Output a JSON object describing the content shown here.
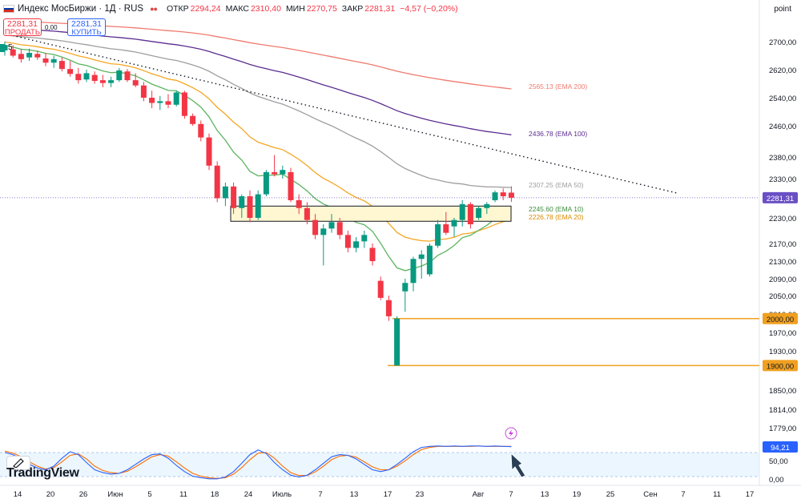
{
  "header": {
    "title": "Индекс МосБиржи · 1Д · RUS",
    "open_label": "ОТКР",
    "open": "2294,24",
    "high_label": "МАКС",
    "high": "2310,40",
    "low_label": "МИН",
    "low": "2270,75",
    "close_label": "ЗАКР",
    "close": "2281,31",
    "change": "−4,57 (−0,20%)"
  },
  "trade": {
    "sell_price": "2281,31",
    "sell_label": "ПРОДАТЬ",
    "spread": "0,00",
    "buy_price": "2281,31",
    "buy_label": "КУПИТЬ"
  },
  "interval_chip": "5",
  "axis_mode": "point",
  "watermark": "TradingView",
  "colors": {
    "up": "#089981",
    "down": "#f23645",
    "ema10": "#5bb45f",
    "ema20": "#f5a623",
    "ema50": "#9e9e9e",
    "ema100": "#5b2d90",
    "ema200": "#ef7a6e",
    "level": "#f0a020",
    "zone_fill": "#fff7d1",
    "price_label": "#6a4fc4",
    "stoch_k": "#2962ff",
    "stoch_d": "#ff6d00"
  },
  "chart_data": {
    "type": "candlestick",
    "y_ticks": [
      "2700,00",
      "2620,00",
      "2540,00",
      "2460,00",
      "2380,00",
      "2330,00",
      "2230,00",
      "2170,00",
      "2130,00",
      "2090,00",
      "2050,00",
      "2010,00",
      "1970,00",
      "1930,00",
      "1850,00",
      "1814,00",
      "1779,00"
    ],
    "y_tick_values": [
      2700,
      2620,
      2540,
      2460,
      2380,
      2330,
      2230,
      2170,
      2130,
      2090,
      2050,
      2010,
      1970,
      1930,
      1850,
      1814,
      1779
    ],
    "x_ticks": [
      "14",
      "20",
      "26",
      "Июн",
      "5",
      "11",
      "18",
      "24",
      "Июль",
      "7",
      "13",
      "17",
      "23",
      "Авг",
      "7",
      "13",
      "19",
      "25",
      "Сен",
      "7",
      "11",
      "17"
    ],
    "candles": [
      {
        "o": 2675,
        "h": 2700,
        "l": 2660,
        "c": 2690
      },
      {
        "o": 2678,
        "h": 2690,
        "l": 2655,
        "c": 2660
      },
      {
        "o": 2665,
        "h": 2680,
        "l": 2640,
        "c": 2650
      },
      {
        "o": 2655,
        "h": 2680,
        "l": 2645,
        "c": 2668
      },
      {
        "o": 2665,
        "h": 2675,
        "l": 2648,
        "c": 2655
      },
      {
        "o": 2652,
        "h": 2668,
        "l": 2630,
        "c": 2640
      },
      {
        "o": 2640,
        "h": 2660,
        "l": 2625,
        "c": 2650
      },
      {
        "o": 2645,
        "h": 2655,
        "l": 2615,
        "c": 2622
      },
      {
        "o": 2622,
        "h": 2645,
        "l": 2600,
        "c": 2608
      },
      {
        "o": 2608,
        "h": 2625,
        "l": 2580,
        "c": 2590
      },
      {
        "o": 2592,
        "h": 2620,
        "l": 2585,
        "c": 2610
      },
      {
        "o": 2605,
        "h": 2615,
        "l": 2580,
        "c": 2588
      },
      {
        "o": 2590,
        "h": 2605,
        "l": 2570,
        "c": 2582
      },
      {
        "o": 2582,
        "h": 2600,
        "l": 2570,
        "c": 2590
      },
      {
        "o": 2590,
        "h": 2625,
        "l": 2585,
        "c": 2618
      },
      {
        "o": 2615,
        "h": 2622,
        "l": 2585,
        "c": 2590
      },
      {
        "o": 2590,
        "h": 2610,
        "l": 2570,
        "c": 2575
      },
      {
        "o": 2575,
        "h": 2585,
        "l": 2530,
        "c": 2540
      },
      {
        "o": 2540,
        "h": 2560,
        "l": 2510,
        "c": 2525
      },
      {
        "o": 2525,
        "h": 2545,
        "l": 2505,
        "c": 2530
      },
      {
        "o": 2530,
        "h": 2550,
        "l": 2510,
        "c": 2520
      },
      {
        "o": 2520,
        "h": 2560,
        "l": 2515,
        "c": 2555
      },
      {
        "o": 2555,
        "h": 2560,
        "l": 2480,
        "c": 2488
      },
      {
        "o": 2488,
        "h": 2495,
        "l": 2460,
        "c": 2465
      },
      {
        "o": 2465,
        "h": 2475,
        "l": 2420,
        "c": 2430
      },
      {
        "o": 2430,
        "h": 2440,
        "l": 2350,
        "c": 2360
      },
      {
        "o": 2360,
        "h": 2370,
        "l": 2270,
        "c": 2280
      },
      {
        "o": 2280,
        "h": 2320,
        "l": 2260,
        "c": 2310
      },
      {
        "o": 2310,
        "h": 2320,
        "l": 2240,
        "c": 2255
      },
      {
        "o": 2255,
        "h": 2290,
        "l": 2230,
        "c": 2285
      },
      {
        "o": 2285,
        "h": 2300,
        "l": 2220,
        "c": 2230
      },
      {
        "o": 2230,
        "h": 2300,
        "l": 2225,
        "c": 2290
      },
      {
        "o": 2290,
        "h": 2350,
        "l": 2285,
        "c": 2345
      },
      {
        "o": 2345,
        "h": 2385,
        "l": 2335,
        "c": 2340
      },
      {
        "o": 2340,
        "h": 2360,
        "l": 2330,
        "c": 2350
      },
      {
        "o": 2345,
        "h": 2355,
        "l": 2270,
        "c": 2275
      },
      {
        "o": 2275,
        "h": 2290,
        "l": 2240,
        "c": 2255
      },
      {
        "o": 2255,
        "h": 2270,
        "l": 2215,
        "c": 2225
      },
      {
        "o": 2225,
        "h": 2240,
        "l": 2180,
        "c": 2190
      },
      {
        "o": 2190,
        "h": 2215,
        "l": 2120,
        "c": 2205
      },
      {
        "o": 2205,
        "h": 2240,
        "l": 2195,
        "c": 2220
      },
      {
        "o": 2220,
        "h": 2230,
        "l": 2180,
        "c": 2190
      },
      {
        "o": 2190,
        "h": 2200,
        "l": 2150,
        "c": 2160
      },
      {
        "o": 2160,
        "h": 2185,
        "l": 2150,
        "c": 2175
      },
      {
        "o": 2175,
        "h": 2200,
        "l": 2160,
        "c": 2190
      },
      {
        "o": 2160,
        "h": 2170,
        "l": 2120,
        "c": 2130
      },
      {
        "o": 2085,
        "h": 2095,
        "l": 2040,
        "c": 2045
      },
      {
        "o": 2040,
        "h": 2050,
        "l": 1995,
        "c": 2005
      },
      {
        "o": 1900,
        "h": 2005,
        "l": 1900,
        "c": 2000
      },
      {
        "o": 2060,
        "h": 2090,
        "l": 2015,
        "c": 2080
      },
      {
        "o": 2080,
        "h": 2140,
        "l": 2060,
        "c": 2135
      },
      {
        "o": 2135,
        "h": 2155,
        "l": 2090,
        "c": 2145
      },
      {
        "o": 2100,
        "h": 2170,
        "l": 2095,
        "c": 2165
      },
      {
        "o": 2165,
        "h": 2225,
        "l": 2160,
        "c": 2215
      },
      {
        "o": 2215,
        "h": 2245,
        "l": 2190,
        "c": 2195
      },
      {
        "o": 2210,
        "h": 2230,
        "l": 2185,
        "c": 2225
      },
      {
        "o": 2225,
        "h": 2275,
        "l": 2210,
        "c": 2265
      },
      {
        "o": 2265,
        "h": 2270,
        "l": 2205,
        "c": 2215
      },
      {
        "o": 2230,
        "h": 2260,
        "l": 2225,
        "c": 2255
      },
      {
        "o": 2255,
        "h": 2270,
        "l": 2240,
        "c": 2265
      },
      {
        "o": 2275,
        "h": 2300,
        "l": 2270,
        "c": 2295
      },
      {
        "o": 2295,
        "h": 2305,
        "l": 2275,
        "c": 2285
      },
      {
        "o": 2294.24,
        "h": 2310.4,
        "l": 2270.75,
        "c": 2281.31
      }
    ],
    "ema_labels": [
      {
        "text": "2565.13 (EMA 200)",
        "value": 2565.13
      },
      {
        "text": "2436.78 (EMA 100)",
        "value": 2436.78
      },
      {
        "text": "2307.25 (EMA 50)",
        "value": 2307.25
      },
      {
        "text": "2245.60 (EMA 10)",
        "value": 2245.6
      },
      {
        "text": "2226.78 (EMA 20)",
        "value": 2226.78
      }
    ],
    "last_price_label": "2281,31",
    "level_labels": [
      "2000,00",
      "1900,00"
    ],
    "levels": [
      2000,
      1900
    ],
    "zone": {
      "from": 2222,
      "to": 2260
    },
    "stoch": {
      "ticks": [
        "50,00",
        "0,00"
      ],
      "value_label": "94,21",
      "k": [
        78,
        72,
        60,
        45,
        35,
        30,
        40,
        62,
        80,
        72,
        50,
        30,
        22,
        18,
        20,
        30,
        45,
        60,
        72,
        74,
        62,
        42,
        25,
        12,
        8,
        5,
        5,
        10,
        25,
        48,
        72,
        85,
        75,
        50,
        30,
        15,
        10,
        15,
        30,
        48,
        66,
        72,
        70,
        60,
        45,
        30,
        25,
        30,
        45,
        62,
        80,
        92,
        95,
        96,
        95,
        96,
        95,
        96,
        96,
        95,
        96,
        95,
        94
      ],
      "d": [
        82,
        76,
        66,
        52,
        40,
        32,
        36,
        52,
        70,
        74,
        60,
        40,
        28,
        22,
        20,
        26,
        38,
        52,
        66,
        72,
        68,
        52,
        35,
        20,
        12,
        8,
        6,
        8,
        18,
        36,
        58,
        76,
        78,
        62,
        40,
        22,
        14,
        14,
        24,
        40,
        58,
        68,
        70,
        65,
        52,
        38,
        30,
        30,
        40,
        55,
        72,
        86,
        92,
        95,
        95,
        95,
        95,
        95,
        96,
        95,
        95,
        95,
        95
      ]
    }
  }
}
